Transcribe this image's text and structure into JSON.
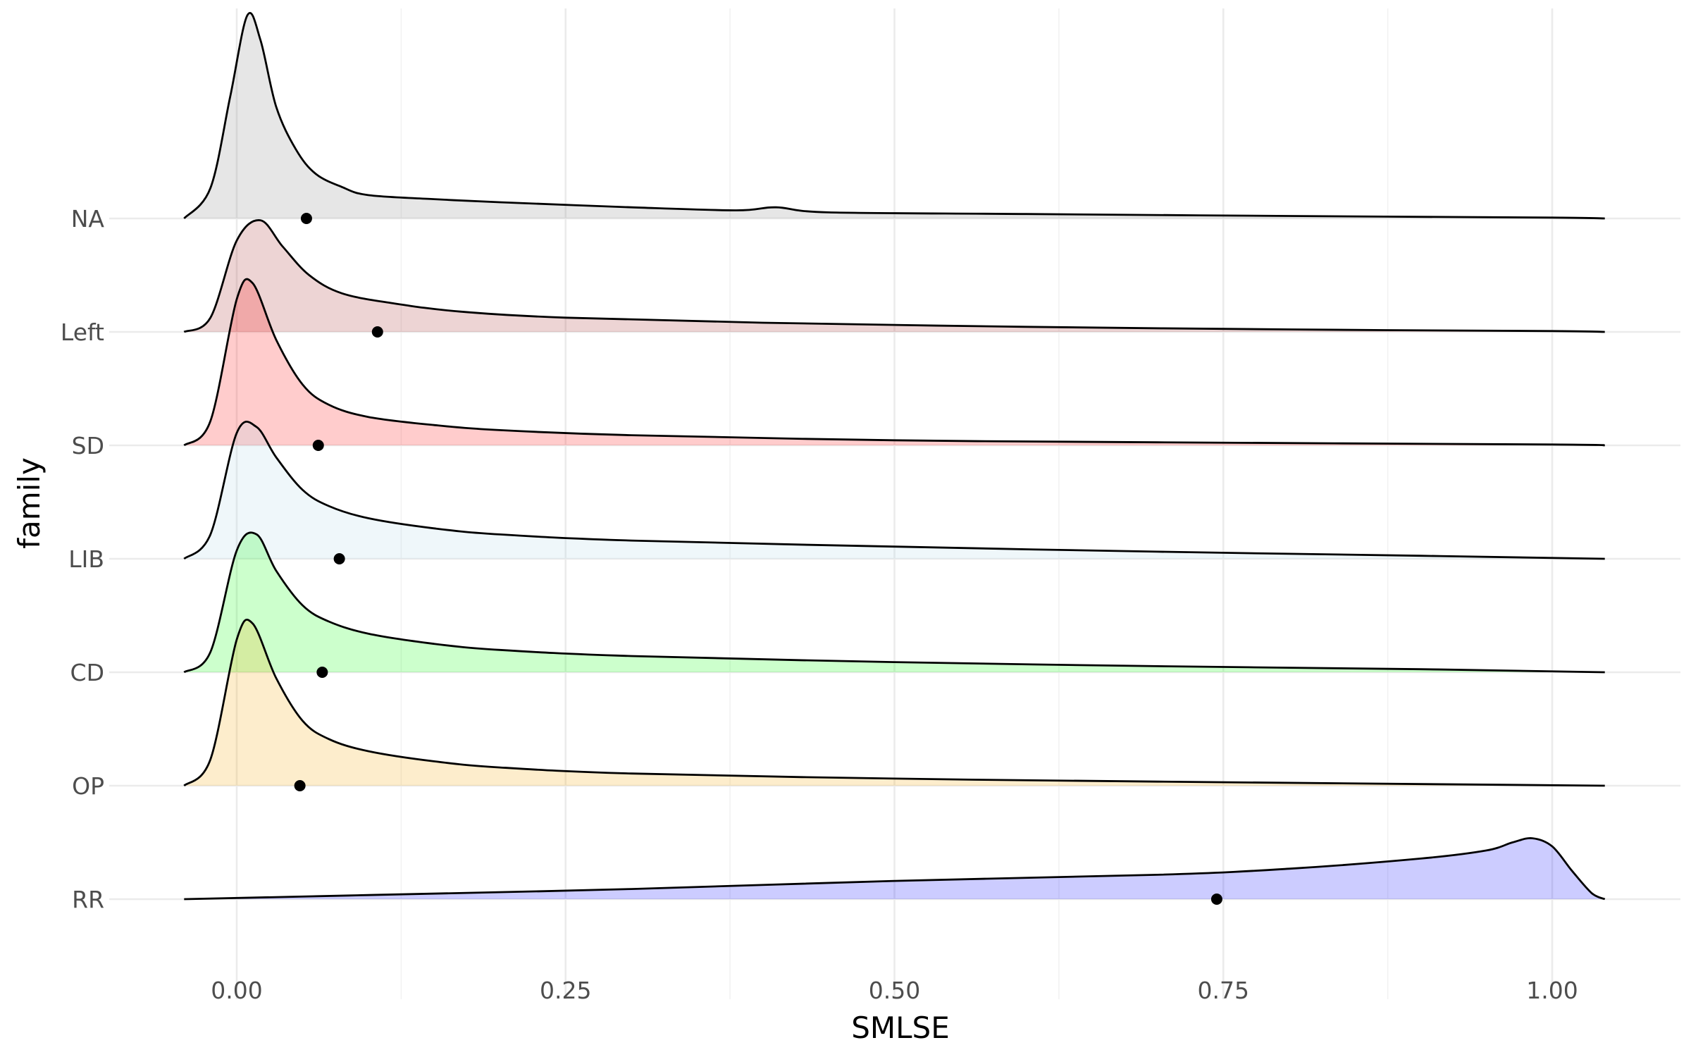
{
  "chart_data": {
    "type": "ridgeline-density",
    "xlabel": "SMLSE",
    "ylabel": "family",
    "xlim": [
      -0.05,
      1.05
    ],
    "x_ticks": [
      "0.00",
      "0.25",
      "0.50",
      "0.75",
      "1.00"
    ],
    "x_tick_values": [
      0,
      0.25,
      0.5,
      0.75,
      1.0
    ],
    "grid": true,
    "legend": "none",
    "series": [
      {
        "name": "NA",
        "color": "#808080",
        "mean_marker": 0.053,
        "density_profile": [
          [
            -0.04,
            0.0
          ],
          [
            -0.02,
            0.15
          ],
          [
            -0.005,
            0.6
          ],
          [
            0.008,
            1.0
          ],
          [
            0.018,
            0.88
          ],
          [
            0.03,
            0.55
          ],
          [
            0.045,
            0.34
          ],
          [
            0.06,
            0.22
          ],
          [
            0.08,
            0.155
          ],
          [
            0.1,
            0.115
          ],
          [
            0.15,
            0.095
          ],
          [
            0.2,
            0.08
          ],
          [
            0.3,
            0.055
          ],
          [
            0.38,
            0.04
          ],
          [
            0.41,
            0.055
          ],
          [
            0.45,
            0.03
          ],
          [
            0.6,
            0.022
          ],
          [
            0.8,
            0.012
          ],
          [
            1.0,
            0.004
          ],
          [
            1.04,
            0.0
          ]
        ]
      },
      {
        "name": "Left",
        "color": "#a52a2a",
        "mean_marker": 0.107,
        "density_profile": [
          [
            -0.04,
            0.0
          ],
          [
            -0.02,
            0.07
          ],
          [
            0.0,
            0.45
          ],
          [
            0.018,
            0.55
          ],
          [
            0.035,
            0.42
          ],
          [
            0.055,
            0.28
          ],
          [
            0.08,
            0.19
          ],
          [
            0.12,
            0.14
          ],
          [
            0.17,
            0.1
          ],
          [
            0.25,
            0.07
          ],
          [
            0.4,
            0.045
          ],
          [
            0.6,
            0.025
          ],
          [
            0.8,
            0.012
          ],
          [
            1.0,
            0.004
          ],
          [
            1.04,
            0.0
          ]
        ]
      },
      {
        "name": "SD",
        "color": "#ff0000",
        "mean_marker": 0.062,
        "density_profile": [
          [
            -0.04,
            0.0
          ],
          [
            -0.02,
            0.12
          ],
          [
            0.0,
            0.72
          ],
          [
            0.012,
            0.8
          ],
          [
            0.03,
            0.52
          ],
          [
            0.05,
            0.3
          ],
          [
            0.07,
            0.2
          ],
          [
            0.1,
            0.14
          ],
          [
            0.15,
            0.1
          ],
          [
            0.2,
            0.075
          ],
          [
            0.3,
            0.05
          ],
          [
            0.5,
            0.025
          ],
          [
            0.7,
            0.015
          ],
          [
            1.0,
            0.004
          ],
          [
            1.04,
            0.0
          ]
        ]
      },
      {
        "name": "LIB",
        "color": "#add8e6",
        "mean_marker": 0.078,
        "density_profile": [
          [
            -0.04,
            0.0
          ],
          [
            -0.02,
            0.12
          ],
          [
            0.0,
            0.62
          ],
          [
            0.015,
            0.65
          ],
          [
            0.03,
            0.5
          ],
          [
            0.05,
            0.34
          ],
          [
            0.07,
            0.26
          ],
          [
            0.1,
            0.2
          ],
          [
            0.15,
            0.15
          ],
          [
            0.2,
            0.12
          ],
          [
            0.3,
            0.09
          ],
          [
            0.5,
            0.06
          ],
          [
            0.7,
            0.035
          ],
          [
            0.9,
            0.015
          ],
          [
            1.04,
            0.0
          ]
        ]
      },
      {
        "name": "CD",
        "color": "#00ff00",
        "mean_marker": 0.065,
        "density_profile": [
          [
            -0.04,
            0.0
          ],
          [
            -0.02,
            0.1
          ],
          [
            0.0,
            0.6
          ],
          [
            0.015,
            0.68
          ],
          [
            0.03,
            0.5
          ],
          [
            0.05,
            0.33
          ],
          [
            0.07,
            0.25
          ],
          [
            0.1,
            0.19
          ],
          [
            0.15,
            0.14
          ],
          [
            0.2,
            0.11
          ],
          [
            0.3,
            0.08
          ],
          [
            0.5,
            0.05
          ],
          [
            0.7,
            0.03
          ],
          [
            0.9,
            0.015
          ],
          [
            1.04,
            0.0
          ]
        ]
      },
      {
        "name": "OP",
        "color": "#f4a300",
        "mean_marker": 0.048,
        "density_profile": [
          [
            -0.04,
            0.0
          ],
          [
            -0.02,
            0.13
          ],
          [
            0.0,
            0.72
          ],
          [
            0.012,
            0.8
          ],
          [
            0.03,
            0.53
          ],
          [
            0.05,
            0.32
          ],
          [
            0.07,
            0.23
          ],
          [
            0.1,
            0.17
          ],
          [
            0.15,
            0.12
          ],
          [
            0.2,
            0.09
          ],
          [
            0.3,
            0.06
          ],
          [
            0.5,
            0.035
          ],
          [
            0.7,
            0.02
          ],
          [
            1.04,
            0.0
          ]
        ]
      },
      {
        "name": "RR",
        "color": "#0000ff",
        "mean_marker": 0.745,
        "density_profile": [
          [
            -0.04,
            0.0
          ],
          [
            0.1,
            0.02
          ],
          [
            0.3,
            0.05
          ],
          [
            0.5,
            0.09
          ],
          [
            0.7,
            0.12
          ],
          [
            0.8,
            0.15
          ],
          [
            0.9,
            0.2
          ],
          [
            0.95,
            0.24
          ],
          [
            0.97,
            0.28
          ],
          [
            0.985,
            0.3
          ],
          [
            1.0,
            0.26
          ],
          [
            1.015,
            0.14
          ],
          [
            1.03,
            0.03
          ],
          [
            1.04,
            0.0
          ]
        ]
      }
    ]
  }
}
